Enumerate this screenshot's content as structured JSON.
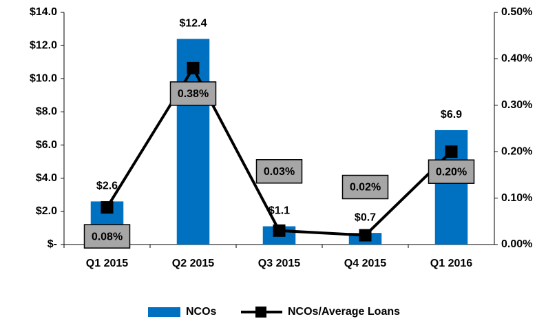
{
  "chart_data": {
    "type": "bar",
    "categories": [
      "Q1 2015",
      "Q2 2015",
      "Q3 2015",
      "Q4 2015",
      "Q1 2016"
    ],
    "series": [
      {
        "name": "NCOs",
        "type": "bar",
        "color": "#0070c0",
        "values": [
          2.6,
          12.4,
          1.1,
          0.7,
          6.9
        ],
        "value_labels": [
          "$2.6",
          "$12.4",
          "$1.1",
          "$0.7",
          "$6.9"
        ]
      },
      {
        "name": "NCOs/Average Loans",
        "type": "line",
        "color": "#000000",
        "axis": "y2",
        "values": [
          0.08,
          0.38,
          0.03,
          0.02,
          0.2
        ],
        "value_labels": [
          "0.08%",
          "0.38%",
          "0.03%",
          "0.02%",
          "0.20%"
        ]
      }
    ],
    "ylim": [
      0,
      14
    ],
    "yticks": [
      {
        "value": 0,
        "label": "$-"
      },
      {
        "value": 2,
        "label": "$2.0"
      },
      {
        "value": 4,
        "label": "$4.0"
      },
      {
        "value": 6,
        "label": "$6.0"
      },
      {
        "value": 8,
        "label": "$8.0"
      },
      {
        "value": 10,
        "label": "$10.0"
      },
      {
        "value": 12,
        "label": "$12.0"
      },
      {
        "value": 14,
        "label": "$14.0"
      }
    ],
    "y2lim": [
      0,
      0.5
    ],
    "y2ticks": [
      {
        "value": 0,
        "label": "0.00%"
      },
      {
        "value": 0.1,
        "label": "0.10%"
      },
      {
        "value": 0.2,
        "label": "0.20%"
      },
      {
        "value": 0.3,
        "label": "0.30%"
      },
      {
        "value": 0.4,
        "label": "0.40%"
      },
      {
        "value": 0.5,
        "label": "0.50%"
      }
    ],
    "grid": false,
    "legend": "bottom"
  }
}
